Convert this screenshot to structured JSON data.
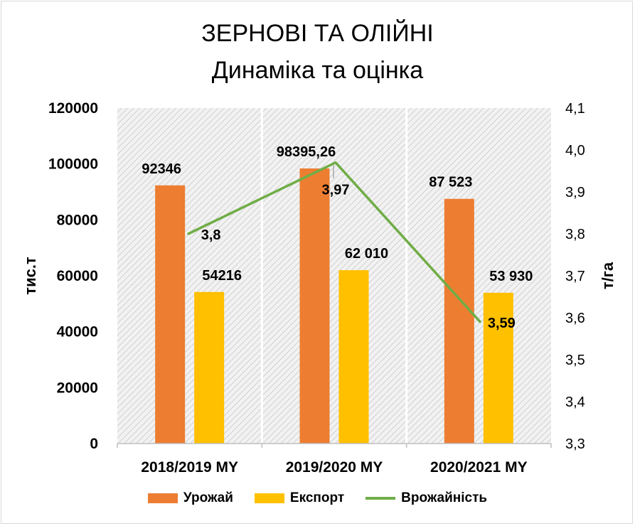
{
  "chart_data": {
    "type": "bar",
    "title": "ЗЕРНОВІ ТА ОЛІЙНІ",
    "subtitle": "Динаміка та оцінка",
    "categories": [
      "2018/2019 MY",
      "2019/2020 MY",
      "2020/2021 MY"
    ],
    "series": [
      {
        "name": "Урожай",
        "type": "bar",
        "axis": "left",
        "values": [
          92346,
          98395.26,
          87523
        ],
        "labels": [
          "92346",
          "98395,26",
          "87 523"
        ],
        "color": "#ed7d31"
      },
      {
        "name": "Експорт",
        "type": "bar",
        "axis": "left",
        "values": [
          54216,
          62010,
          53930
        ],
        "labels": [
          "54216",
          "62 010",
          "53 930"
        ],
        "color": "#ffc000"
      },
      {
        "name": "Врожайність",
        "type": "line",
        "axis": "right",
        "values": [
          3.8,
          3.97,
          3.59
        ],
        "labels": [
          "3,8",
          "3,97",
          "3,59"
        ],
        "color": "#70ad47"
      }
    ],
    "ylabel": "тис.т",
    "ylabel_right": "т/га",
    "ylim": [
      0,
      120000
    ],
    "ylim_right": [
      3.3,
      4.1
    ],
    "y_ticks": [
      "0",
      "20000",
      "40000",
      "60000",
      "80000",
      "100000",
      "120000"
    ],
    "y_right_ticks": [
      "3,3",
      "3,4",
      "3,5",
      "3,6",
      "3,7",
      "3,8",
      "3,9",
      "4,0",
      "4,1"
    ],
    "legend_position": "bottom",
    "plot_background": "hatched gray"
  }
}
